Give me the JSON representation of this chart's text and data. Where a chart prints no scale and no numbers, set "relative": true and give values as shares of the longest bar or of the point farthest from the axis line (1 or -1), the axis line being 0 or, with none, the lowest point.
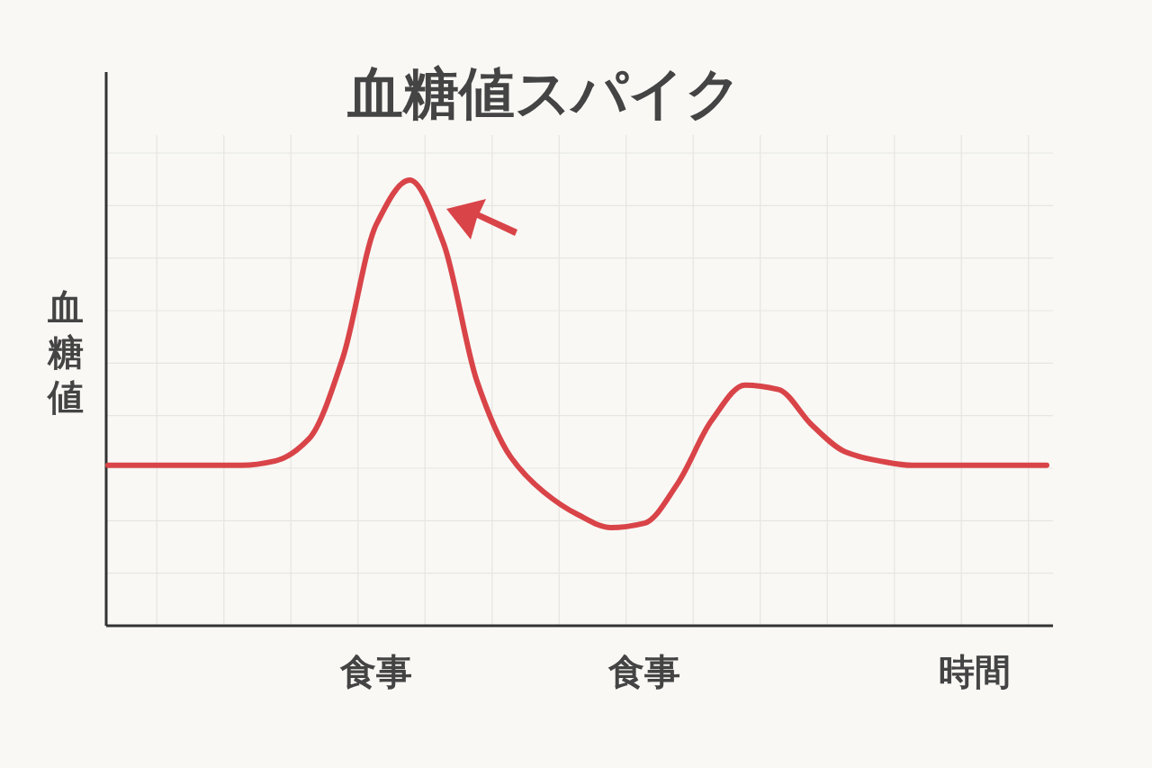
{
  "chart_data": {
    "type": "line",
    "title": "血糖値スパイク",
    "ylabel": "血糖値",
    "xlabel": "時間",
    "relative": true,
    "grid": true,
    "marker": "none",
    "line_style": "solid",
    "categories": [
      null,
      null,
      null,
      null,
      null,
      null,
      null,
      null,
      "食事",
      null,
      null,
      null,
      null,
      null,
      null,
      null,
      "食事",
      null,
      null,
      null,
      null,
      null,
      null,
      null,
      null,
      null,
      null,
      null,
      null
    ],
    "series": [
      {
        "color": "#d94448",
        "values": [
          0.36,
          0.36,
          0.36,
          0.36,
          0.36,
          0.37,
          0.42,
          0.6,
          0.9,
          1,
          0.86,
          0.55,
          0.38,
          0.3,
          0.25,
          0.22,
          0.23,
          0.32,
          0.46,
          0.54,
          0.53,
          0.45,
          0.39,
          0.37,
          0.36,
          0.36,
          0.36,
          0.36,
          0.36
        ]
      }
    ]
  }
}
